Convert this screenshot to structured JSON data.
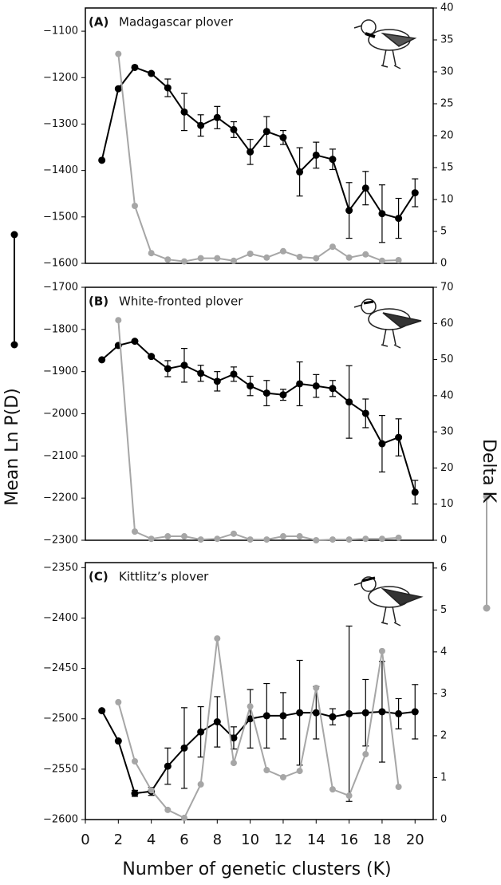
{
  "shared": {
    "xlabel": "Number of genetic clusters (K)",
    "ylabel": "Mean Ln P(D)",
    "y2label": "Delta K"
  },
  "chart_data": [
    {
      "type": "line",
      "panel_label": "(A)",
      "title": "Madagascar plover",
      "xlim": [
        0,
        21.1
      ],
      "ylim": [
        -1600,
        -1050
      ],
      "yticks": [
        {
          "value": -1100,
          "label": "−1100"
        },
        {
          "value": -1200,
          "label": "−1200"
        },
        {
          "value": -1300,
          "label": "−1300"
        },
        {
          "value": -1400,
          "label": "−1400"
        },
        {
          "value": -1500,
          "label": "−1500"
        },
        {
          "value": -1600,
          "label": "−1600"
        }
      ],
      "y2lim": [
        0,
        40
      ],
      "y2ticks": [
        0,
        5,
        10,
        15,
        20,
        25,
        30,
        35,
        40
      ],
      "series": [
        {
          "color": "#000000",
          "x": [
            1,
            2,
            3,
            4,
            5,
            6,
            7,
            8,
            9,
            10,
            11,
            12,
            13,
            14,
            15,
            16,
            17,
            18,
            19,
            20
          ],
          "values": [
            -1378,
            -1224,
            -1178,
            -1191,
            -1222,
            -1274,
            -1303,
            -1286,
            -1312,
            -1360,
            -1316,
            -1329,
            -1403,
            -1367,
            -1376,
            -1486,
            -1438,
            -1493,
            -1503,
            -1448
          ],
          "errors": [
            null,
            null,
            3,
            3,
            19,
            40,
            23,
            24,
            17,
            27,
            32,
            15,
            52,
            28,
            22,
            60,
            36,
            62,
            43,
            30
          ]
        },
        {
          "color": "#a6a6a6",
          "axis": "y2",
          "x": [
            2,
            3,
            4,
            5,
            6,
            7,
            8,
            9,
            10,
            11,
            12,
            13,
            14,
            15,
            16,
            17,
            18,
            19
          ],
          "values": [
            32.8,
            9.0,
            1.6,
            0.6,
            0.3,
            0.8,
            0.8,
            0.4,
            1.5,
            0.9,
            1.9,
            1.0,
            0.8,
            2.6,
            0.9,
            1.4,
            0.4,
            0.5
          ]
        }
      ]
    },
    {
      "type": "line",
      "panel_label": "(B)",
      "title": "White-fronted plover",
      "xlim": [
        0,
        21.1
      ],
      "ylim": [
        -2300,
        -1700
      ],
      "yticks": [
        {
          "value": -1700,
          "label": "−1700"
        },
        {
          "value": -1800,
          "label": "−1800"
        },
        {
          "value": -1900,
          "label": "−1900"
        },
        {
          "value": -2000,
          "label": "−2000"
        },
        {
          "value": -2100,
          "label": "−2100"
        },
        {
          "value": -2200,
          "label": "−2200"
        },
        {
          "value": -2300,
          "label": "−2300"
        }
      ],
      "y2lim": [
        0,
        70
      ],
      "y2ticks": [
        0,
        10,
        20,
        30,
        40,
        50,
        60,
        70
      ],
      "series": [
        {
          "color": "#000000",
          "x": [
            1,
            2,
            3,
            4,
            5,
            6,
            7,
            8,
            9,
            10,
            11,
            12,
            13,
            14,
            15,
            16,
            17,
            18,
            19,
            20
          ],
          "values": [
            -1872,
            -1838,
            -1828,
            -1864,
            -1893,
            -1885,
            -1904,
            -1923,
            -1906,
            -1934,
            -1951,
            -1955,
            -1929,
            -1934,
            -1940,
            -1972,
            -1999,
            -2071,
            -2056,
            -2186
          ],
          "errors": [
            null,
            3,
            3,
            3,
            19,
            40,
            19,
            23,
            17,
            23,
            30,
            13,
            52,
            27,
            19,
            86,
            34,
            67,
            44,
            28
          ]
        },
        {
          "color": "#a6a6a6",
          "axis": "y2",
          "x": [
            2,
            3,
            4,
            5,
            6,
            7,
            8,
            9,
            10,
            11,
            12,
            13,
            14,
            15,
            16,
            17,
            18,
            19
          ],
          "values": [
            60.9,
            2.4,
            0.4,
            1.1,
            1.1,
            0.2,
            0.4,
            1.8,
            0.2,
            0.2,
            1.1,
            1.1,
            0,
            0.2,
            0.2,
            0.4,
            0.4,
            0.7
          ]
        }
      ]
    },
    {
      "type": "line",
      "panel_label": "(C)",
      "title": "Kittlitz’s plover",
      "xlim": [
        0,
        21.1
      ],
      "xticks": [
        0,
        2,
        4,
        6,
        8,
        10,
        12,
        14,
        16,
        18,
        20
      ],
      "ylim": [
        -2600,
        -2345
      ],
      "yticks": [
        {
          "value": -2350,
          "label": "−2350"
        },
        {
          "value": -2400,
          "label": "−2400"
        },
        {
          "value": -2450,
          "label": "−2450"
        },
        {
          "value": -2500,
          "label": "−2500"
        },
        {
          "value": -2550,
          "label": "−2550"
        },
        {
          "value": -2600,
          "label": "−2600"
        }
      ],
      "y2lim": [
        0,
        6.13
      ],
      "y2ticks": [
        0,
        1,
        2,
        3,
        4,
        5,
        6
      ],
      "series": [
        {
          "color": "#000000",
          "x": [
            1,
            2,
            3,
            4,
            5,
            6,
            7,
            8,
            9,
            10,
            11,
            12,
            13,
            14,
            15,
            16,
            17,
            18,
            19,
            20
          ],
          "values": [
            -2492,
            -2522,
            -2574,
            -2572,
            -2547,
            -2529,
            -2513,
            -2503,
            -2519,
            -2500,
            -2497,
            -2497,
            -2494,
            -2494,
            -2498,
            -2495,
            -2494,
            -2493,
            -2495,
            -2493
          ],
          "errors": [
            null,
            null,
            3,
            4,
            18,
            40,
            25,
            25,
            11,
            29,
            32,
            23,
            52,
            26,
            8,
            87,
            33,
            50,
            15,
            27
          ]
        },
        {
          "color": "#a6a6a6",
          "axis": "y2",
          "x": [
            2,
            3,
            4,
            5,
            6,
            7,
            8,
            9,
            10,
            11,
            12,
            13,
            14,
            15,
            16,
            17,
            18,
            19
          ],
          "values": [
            2.8,
            1.39,
            0.7,
            0.23,
            0.04,
            0.84,
            4.32,
            1.35,
            2.7,
            1.18,
            1.01,
            1.16,
            3.14,
            0.72,
            0.57,
            1.56,
            4.02,
            0.78
          ]
        }
      ]
    }
  ]
}
